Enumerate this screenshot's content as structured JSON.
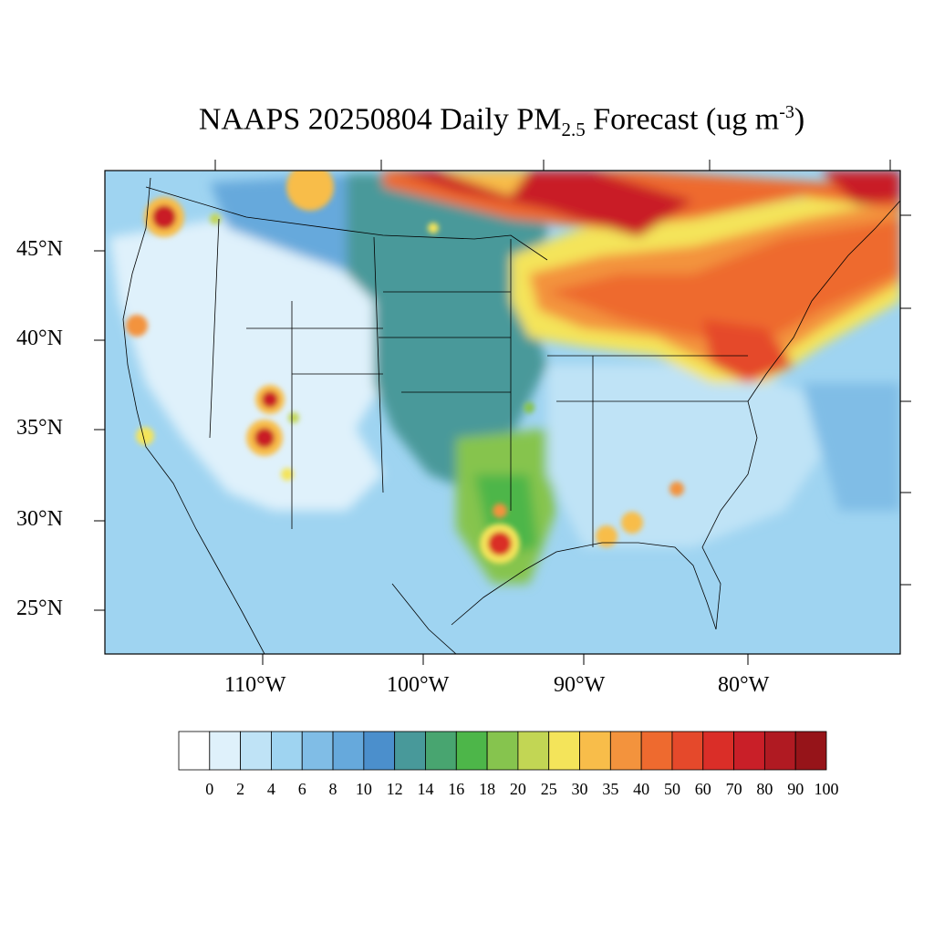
{
  "title": {
    "prefix": "NAAPS 20250804 Daily PM",
    "subscript": "2.5",
    "middle": " Forecast (ug m",
    "superscript": "-3",
    "suffix": ")"
  },
  "axes": {
    "lat_labels": [
      "45°N",
      "40°N",
      "35°N",
      "30°N",
      "25°N"
    ],
    "lon_labels": [
      "110°W",
      "100°W",
      "90°W",
      "80°W"
    ]
  },
  "colorbar": {
    "labels": [
      "0",
      "2",
      "4",
      "6",
      "8",
      "10",
      "12",
      "14",
      "16",
      "18",
      "20",
      "25",
      "30",
      "35",
      "40",
      "50",
      "60",
      "70",
      "80",
      "90",
      "100"
    ],
    "colors": [
      "#ffffff",
      "#dff1fb",
      "#bfe3f6",
      "#9fd4f1",
      "#80bde6",
      "#66a9dc",
      "#4b8fcc",
      "#48999a",
      "#48a570",
      "#4db649",
      "#86c44e",
      "#c2d654",
      "#f4e45a",
      "#f8bd4a",
      "#f3933d",
      "#ee6a2f",
      "#e5492b",
      "#da2e28",
      "#c91f28",
      "#b01a22",
      "#961419"
    ]
  },
  "legend_semantics": "PM2.5 concentration (ug m-3)"
}
